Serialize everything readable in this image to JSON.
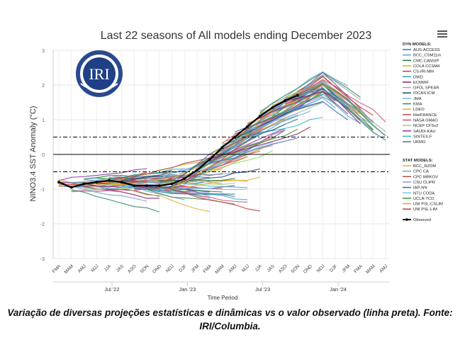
{
  "chart_data": {
    "type": "line",
    "title": "Last 22 seasons of All models ending December 2023",
    "ylabel": "NINO3.4 SST Anomaly (°C)",
    "xlabel": "Time Period",
    "ylim": [
      -3,
      3
    ],
    "yticks": [
      "3",
      "2",
      "1",
      "0",
      "-1",
      "-2",
      "-3"
    ],
    "seasons": [
      "FMA",
      "MAM",
      "AMJ",
      "MJJ",
      "JJA",
      "JAS",
      "ASO",
      "SON",
      "OND",
      "NDJ",
      "DJF",
      "JFM",
      "FMA",
      "MAM",
      "AMJ",
      "MJJ",
      "JJA",
      "JAS",
      "ASO",
      "SON",
      "OND",
      "NDJ",
      "DJF",
      "JFM",
      "FMA",
      "MAM",
      "AMJ"
    ],
    "months": [
      "Jul '22",
      "Jan '23",
      "Jul '23",
      "Jan '24"
    ],
    "reference_lines": [
      0.5,
      0,
      -0.5
    ],
    "observed": {
      "name": "Observed",
      "values": [
        -0.8,
        -0.95,
        -0.85,
        -0.8,
        -0.75,
        -0.8,
        -0.9,
        -0.9,
        -0.9,
        -0.85,
        -0.7,
        -0.45,
        -0.15,
        0.2,
        0.5,
        0.8,
        1.1,
        1.35,
        1.55,
        1.7
      ]
    },
    "legend": {
      "dyn_header": "DYN MODELS:",
      "dyn": [
        {
          "name": "AUS-ACCESS",
          "color": "#3b6fb6"
        },
        {
          "name": "BCC_CSM11m",
          "color": "#5aa0d8"
        },
        {
          "name": "CMC CANSIP",
          "color": "#2c7a3a"
        },
        {
          "name": "COLA CCSM4",
          "color": "#c9b437"
        },
        {
          "name": "CS-IRI-MM",
          "color": "#c23a3a"
        },
        {
          "name": "DWD",
          "color": "#3b9fb6"
        },
        {
          "name": "ECMWF",
          "color": "#8b1f6b"
        },
        {
          "name": "GFDL SPEAR",
          "color": "#a8a8a8"
        },
        {
          "name": "IOCAS ICM",
          "color": "#26456e"
        },
        {
          "name": "JMA",
          "color": "#7fb8e0"
        },
        {
          "name": "KMA",
          "color": "#2f8f5a"
        },
        {
          "name": "LDEO",
          "color": "#e0b03a"
        },
        {
          "name": "MetFRANCE",
          "color": "#d24a3a"
        },
        {
          "name": "NASA GMAO",
          "color": "#d6508a"
        },
        {
          "name": "NCEP CFSv2",
          "color": "#9bd46b"
        },
        {
          "name": "SAUDI-KAU",
          "color": "#8a3a9a"
        },
        {
          "name": "SINTEX-F",
          "color": "#3ab6c6"
        },
        {
          "name": "UKMO",
          "color": "#4a6fa5"
        }
      ],
      "stat_header": "STAT MODELS:",
      "stat": [
        {
          "name": "BCC_RZDM",
          "color": "#f0a830"
        },
        {
          "name": "CPC CA",
          "color": "#7a9fcf"
        },
        {
          "name": "CPC MRKOV",
          "color": "#b44a4a"
        },
        {
          "name": "CSU CLIPR",
          "color": "#9a8fcf"
        },
        {
          "name": "IAP-NN",
          "color": "#2f6f8f"
        },
        {
          "name": "NTU CODA",
          "color": "#79c6e8"
        },
        {
          "name": "UCLA-TCD",
          "color": "#3f8f3f"
        },
        {
          "name": "UW PSL-CSLIM",
          "color": "#d9a530"
        },
        {
          "name": "UW PSL-LIM",
          "color": "#c73c3c"
        }
      ],
      "observed_label": "Observed"
    }
  },
  "logo": {
    "text": "IRI"
  },
  "caption": "Variação de diversas projeções estatísticas e dinâmicas vs o valor observado (linha preta). Fonte: IRI/Columbia."
}
